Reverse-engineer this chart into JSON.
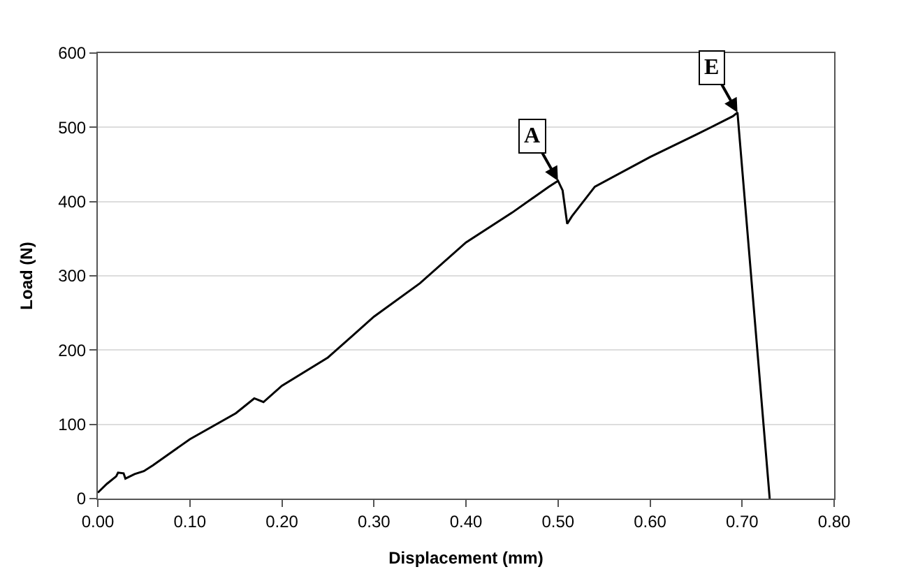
{
  "chart_data": {
    "type": "line",
    "xlabel": "Displacement (mm)",
    "ylabel": "Load (N)",
    "x": [
      0,
      0.01,
      0.02,
      0.022,
      0.028,
      0.03,
      0.04,
      0.05,
      0.06,
      0.1,
      0.15,
      0.17,
      0.18,
      0.2,
      0.25,
      0.3,
      0.35,
      0.4,
      0.45,
      0.49,
      0.5,
      0.505,
      0.51,
      0.515,
      0.54,
      0.6,
      0.65,
      0.69,
      0.695,
      0.73
    ],
    "series": [
      {
        "color": "#000000",
        "values": [
          8,
          20,
          30,
          35,
          34,
          27,
          33,
          37,
          45,
          80,
          115,
          135,
          130,
          152,
          190,
          245,
          290,
          345,
          385,
          420,
          428,
          415,
          370,
          380,
          420,
          460,
          490,
          515,
          520,
          0
        ]
      }
    ],
    "xlim": [
      0,
      0.8
    ],
    "xticks": [
      {
        "value": 0,
        "label": "0.00"
      },
      {
        "value": 0.1,
        "label": "0.10"
      },
      {
        "value": 0.2,
        "label": "0.20"
      },
      {
        "value": 0.3,
        "label": "0.30"
      },
      {
        "value": 0.4,
        "label": "0.40"
      },
      {
        "value": 0.5,
        "label": "0.50"
      },
      {
        "value": 0.6,
        "label": "0.60"
      },
      {
        "value": 0.7,
        "label": "0.70"
      },
      {
        "value": 0.8,
        "label": "0.80"
      }
    ],
    "ylim": [
      0,
      600
    ],
    "yticks": [
      0,
      100,
      200,
      300,
      400,
      500,
      600
    ],
    "annotations": [
      {
        "text": "A",
        "x": 0.5,
        "y": 428
      },
      {
        "text": "E",
        "x": 0.695,
        "y": 520
      }
    ],
    "grid": "y",
    "marker": "none",
    "line_style": "solid"
  }
}
